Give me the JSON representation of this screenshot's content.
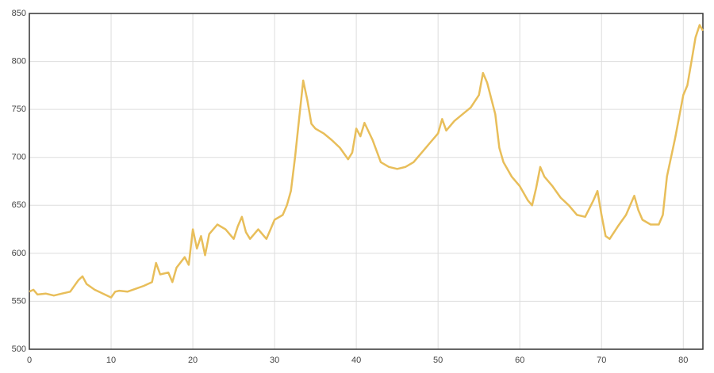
{
  "chart_data": {
    "type": "line",
    "x": [
      0,
      0.5,
      1,
      2,
      3,
      4,
      5,
      6,
      6.5,
      7,
      8,
      9,
      10,
      10.5,
      11,
      12,
      13,
      14,
      15,
      15.5,
      16,
      17,
      17.5,
      18,
      19,
      19.5,
      20,
      20.5,
      21,
      21.5,
      22,
      23,
      24,
      25,
      25.5,
      26,
      26.5,
      27,
      28,
      29,
      29.5,
      30,
      31,
      31.5,
      32,
      32.5,
      33,
      33.5,
      34,
      34.5,
      35,
      36,
      37,
      38,
      39,
      39.5,
      40,
      40.5,
      41,
      42,
      43,
      44,
      45,
      46,
      47,
      48,
      49,
      50,
      50.5,
      51,
      52,
      53,
      54,
      55,
      55.5,
      56,
      57,
      57.5,
      58,
      59,
      60,
      61,
      61.5,
      62,
      62.5,
      63,
      64,
      65,
      66,
      67,
      68,
      69,
      69.5,
      70,
      70.5,
      71,
      72,
      73,
      74,
      74.5,
      75,
      76,
      77,
      77.5,
      78,
      79,
      80,
      80.5,
      81,
      81.5,
      82,
      82.4
    ],
    "values": [
      560,
      562,
      557,
      558,
      556,
      558,
      560,
      572,
      576,
      568,
      562,
      558,
      554,
      560,
      561,
      560,
      563,
      566,
      570,
      590,
      578,
      580,
      570,
      585,
      596,
      588,
      625,
      605,
      618,
      598,
      620,
      630,
      625,
      615,
      628,
      638,
      622,
      615,
      625,
      615,
      625,
      635,
      640,
      650,
      665,
      700,
      740,
      780,
      760,
      735,
      730,
      725,
      718,
      710,
      698,
      705,
      730,
      722,
      736,
      718,
      695,
      690,
      688,
      690,
      695,
      705,
      715,
      725,
      740,
      728,
      738,
      745,
      752,
      765,
      788,
      778,
      745,
      710,
      695,
      680,
      670,
      655,
      650,
      668,
      690,
      680,
      670,
      658,
      650,
      640,
      638,
      655,
      665,
      640,
      618,
      615,
      628,
      640,
      660,
      645,
      635,
      630,
      630,
      640,
      680,
      720,
      765,
      775,
      800,
      825,
      838,
      832
    ],
    "color": "#e8be5a",
    "xlim": [
      0,
      82.4
    ],
    "xticks": [
      0,
      10,
      20,
      30,
      40,
      50,
      60,
      70,
      80
    ],
    "ylim": [
      500,
      850
    ],
    "yticks": [
      500,
      550,
      600,
      650,
      700,
      750,
      800,
      850
    ],
    "grid": true
  }
}
